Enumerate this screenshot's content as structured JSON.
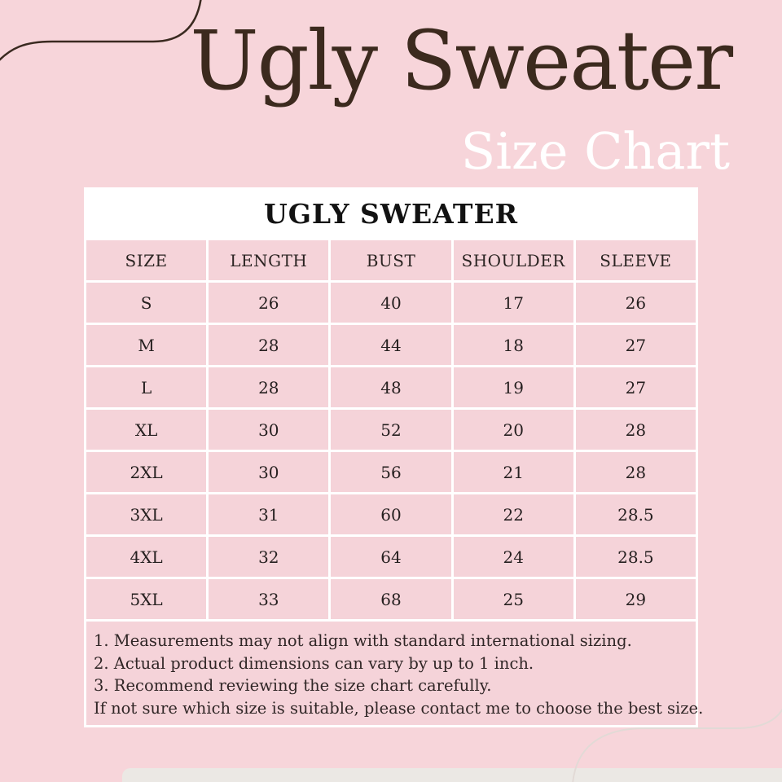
{
  "header": {
    "title": "Ugly Sweater",
    "subtitle": "Size Chart"
  },
  "table": {
    "title": "UGLY SWEATER",
    "columns": [
      "SIZE",
      "LENGTH",
      "BUST",
      "SHOULDER",
      "SLEEVE"
    ],
    "rows": [
      [
        "S",
        "26",
        "40",
        "17",
        "26"
      ],
      [
        "M",
        "28",
        "44",
        "18",
        "27"
      ],
      [
        "L",
        "28",
        "48",
        "19",
        "27"
      ],
      [
        "XL",
        "30",
        "52",
        "20",
        "28"
      ],
      [
        "2XL",
        "30",
        "56",
        "21",
        "28"
      ],
      [
        "3XL",
        "31",
        "60",
        "22",
        "28.5"
      ],
      [
        "4XL",
        "32",
        "64",
        "24",
        "28.5"
      ],
      [
        "5XL",
        "33",
        "68",
        "25",
        "29"
      ]
    ]
  },
  "notes": [
    "1. Measurements may not align with standard international sizing.",
    "2. Actual product dimensions can vary by up to 1 inch.",
    "3. Recommend reviewing the size chart carefully.",
    "If not sure which size is suitable, please contact me to choose the best size."
  ],
  "chart_data": {
    "type": "table",
    "title": "UGLY SWEATER",
    "columns": [
      "SIZE",
      "LENGTH",
      "BUST",
      "SHOULDER",
      "SLEEVE"
    ],
    "rows": [
      {
        "size": "S",
        "length": 26,
        "bust": 40,
        "shoulder": 17,
        "sleeve": 26
      },
      {
        "size": "M",
        "length": 28,
        "bust": 44,
        "shoulder": 18,
        "sleeve": 27
      },
      {
        "size": "L",
        "length": 28,
        "bust": 48,
        "shoulder": 19,
        "sleeve": 27
      },
      {
        "size": "XL",
        "length": 30,
        "bust": 52,
        "shoulder": 20,
        "sleeve": 28
      },
      {
        "size": "2XL",
        "length": 30,
        "bust": 56,
        "shoulder": 21,
        "sleeve": 28
      },
      {
        "size": "3XL",
        "length": 31,
        "bust": 60,
        "shoulder": 22,
        "sleeve": 28.5
      },
      {
        "size": "4XL",
        "length": 32,
        "bust": 64,
        "shoulder": 24,
        "sleeve": 28.5
      },
      {
        "size": "5XL",
        "length": 33,
        "bust": 68,
        "shoulder": 25,
        "sleeve": 29
      }
    ]
  },
  "colors": {
    "page_background": "#f7d5da",
    "cell_pink": "#f5d3d9",
    "card_white": "#ffffff",
    "title_brown": "#3c2a1e",
    "subtitle_white": "#ffffff",
    "text_dark": "#262020",
    "bottom_band": "#ebe8e4",
    "curve_dark": "#3a2a20",
    "curve_light": "#e2dad6"
  }
}
